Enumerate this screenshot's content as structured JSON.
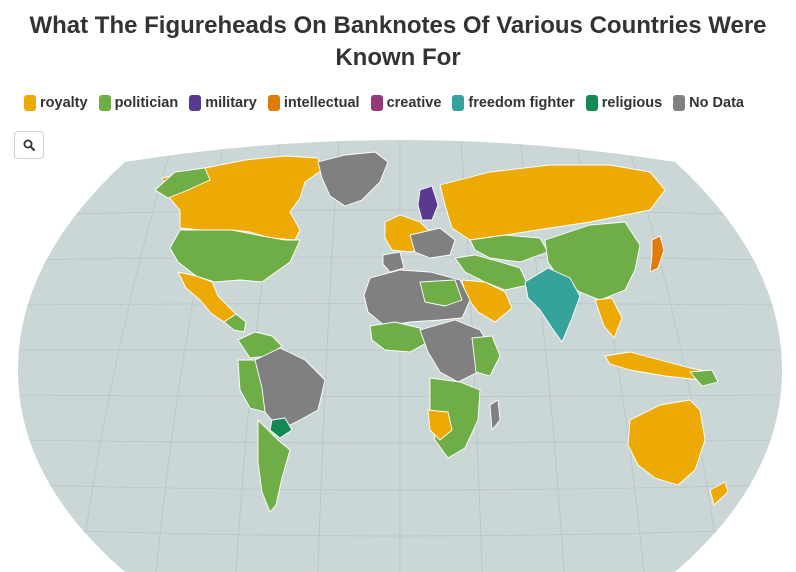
{
  "title": "What The Figureheads On Banknotes Of Various Countries Were Known For",
  "legend": [
    {
      "label": "royalty",
      "color": "#edaa05"
    },
    {
      "label": "politician",
      "color": "#6fad47"
    },
    {
      "label": "military",
      "color": "#5a3a91"
    },
    {
      "label": "intellectual",
      "color": "#e07b07"
    },
    {
      "label": "creative",
      "color": "#983778"
    },
    {
      "label": "freedom fighter",
      "color": "#35a29c"
    },
    {
      "label": "religious",
      "color": "#128a55"
    },
    {
      "label": "No Data",
      "color": "#808080"
    }
  ],
  "search_button": {
    "icon": "search-icon"
  },
  "map": {
    "projection": "robinson",
    "ocean_color": "#cbd6d6",
    "graticule": true
  }
}
